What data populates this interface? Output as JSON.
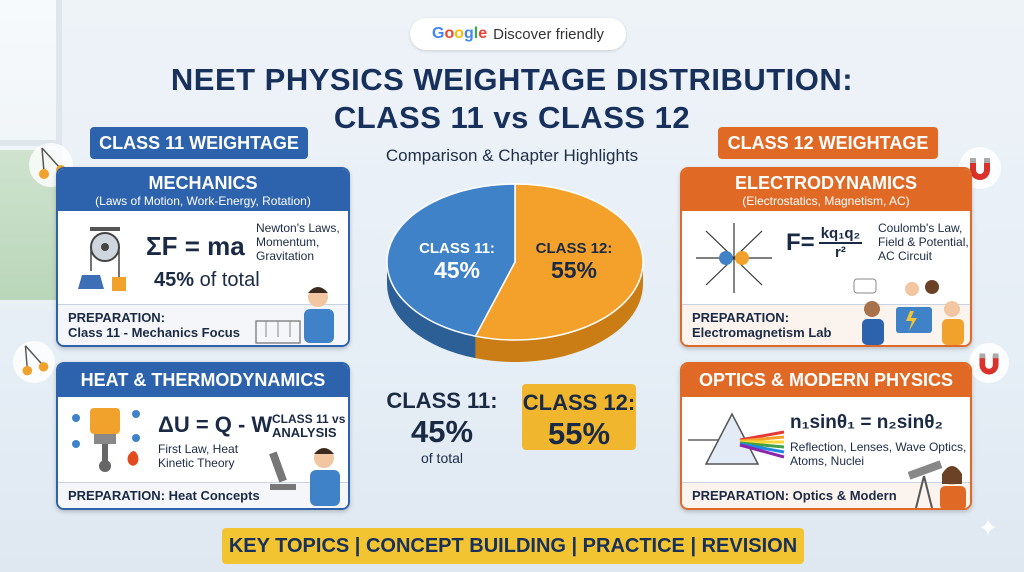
{
  "badge": {
    "brand": "Google",
    "text": "Discover friendly"
  },
  "title": {
    "line1": "NEET PHYSICS WEIGHTAGE DISTRIBUTION:",
    "line2": "CLASS 11 vs CLASS 12"
  },
  "subtitle": "Comparison & Chapter Highlights",
  "left_header": "CLASS 11 WEIGHTAGE",
  "right_header": "CLASS 12 WEIGHTAGE",
  "cards": {
    "mechanics": {
      "title": "MECHANICS",
      "sub": "(Laws of Motion, Work-Energy, Rotation)",
      "equation": "ΣF = ma",
      "notes": [
        "Newton's Laws,",
        "Momentum,",
        "Gravitation"
      ],
      "share": "45%",
      "share_suffix": "of total",
      "prep_label": "PREPARATION:",
      "prep_text": "Class 11 - Mechanics Focus"
    },
    "thermo": {
      "title": "HEAT & THERMODYNAMICS",
      "equation": "ΔU = Q - W",
      "side_label_1": "CLASS 11 vs",
      "side_label_2": "ANALYSIS",
      "notes": [
        "First Law, Heat",
        "Kinetic Theory"
      ],
      "prep_label": "PREPARATION:",
      "prep_text": "Heat Concepts"
    },
    "electro": {
      "title": "ELECTRODYNAMICS",
      "sub": "(Electrostatics, Magnetism, AC)",
      "eq_lhs": "F=",
      "eq_num": "kq₁q₂",
      "eq_den": "r²",
      "notes": [
        "Coulomb's Law,",
        "Field & Potential,",
        "AC Circuit"
      ],
      "prep_label": "PREPARATION:",
      "prep_text": "Electromagnetism Lab"
    },
    "optics": {
      "title": "OPTICS & MODERN PHYSICS",
      "equation": "n₁sinθ₁ = n₂sinθ₂",
      "notes": [
        "Reflection, Lenses, Wave Optics,",
        "Atoms, Nuclei"
      ],
      "prep_label": "PREPARATION:",
      "prep_text": "Optics & Modern"
    }
  },
  "pie": {
    "class11_label": "CLASS 11:",
    "class11_value": "45%",
    "class12_label": "CLASS 12:",
    "class12_value": "55%",
    "class11_share": 45,
    "class12_share": 55,
    "colors": {
      "class11": "#3f82c8",
      "class12": "#f3a12a"
    }
  },
  "stats": {
    "class11_label": "CLASS 11:",
    "class11_value": "45%",
    "class11_suffix": "of total",
    "class12_label": "CLASS 12:",
    "class12_value": "55%"
  },
  "footer": "KEY TOPICS | CONCEPT BUILDING | PRACTICE | REVISION",
  "colors": {
    "class11": "#2d62ad",
    "class12": "#e06a25",
    "accent": "#f2c432"
  }
}
